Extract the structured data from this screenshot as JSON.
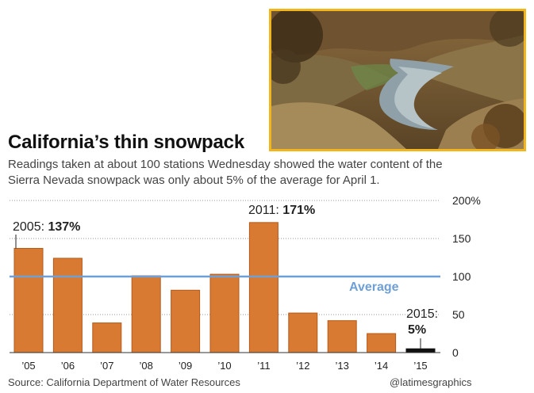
{
  "header": {
    "title": "California’s thin snowpack",
    "subtitle": "Readings taken at about 100 stations Wednesday showed the water content of the Sierra Nevada snowpack was only about 5% of the average for April 1."
  },
  "photo": {
    "description_icon": "river-canyon-photo-icon"
  },
  "footer": {
    "source": "Source: California Department of Water Resources",
    "credit": "@latimesgraphics"
  },
  "colors": {
    "bar": "#d97a33",
    "bar_edge": "#b55a1a",
    "highlight_bar": "#111111",
    "average_line": "#6e9fd6",
    "photo_border": "#f2b51a"
  },
  "chart_data": {
    "type": "bar",
    "categories": [
      "’05",
      "’06",
      "’07",
      "’08",
      "’09",
      "’10",
      "’11",
      "’12",
      "’13",
      "’14",
      "’15"
    ],
    "values": [
      137,
      124,
      39,
      101,
      82,
      103,
      171,
      52,
      42,
      25,
      5
    ],
    "ylim": [
      0,
      200
    ],
    "yticks": [
      0,
      50,
      100,
      150,
      200
    ],
    "ytick_labels": [
      "0",
      "50",
      "100",
      "150",
      "200%"
    ],
    "average": {
      "value": 100,
      "label": "Average"
    },
    "annotations": [
      {
        "category_index": 0,
        "prefix": "2005: ",
        "value_text": "137%"
      },
      {
        "category_index": 6,
        "prefix": "2011: ",
        "value_text": "171%"
      },
      {
        "category_index": 10,
        "prefix": "2015:",
        "value_text": "5%"
      }
    ],
    "grid": "dotted horizontal"
  }
}
